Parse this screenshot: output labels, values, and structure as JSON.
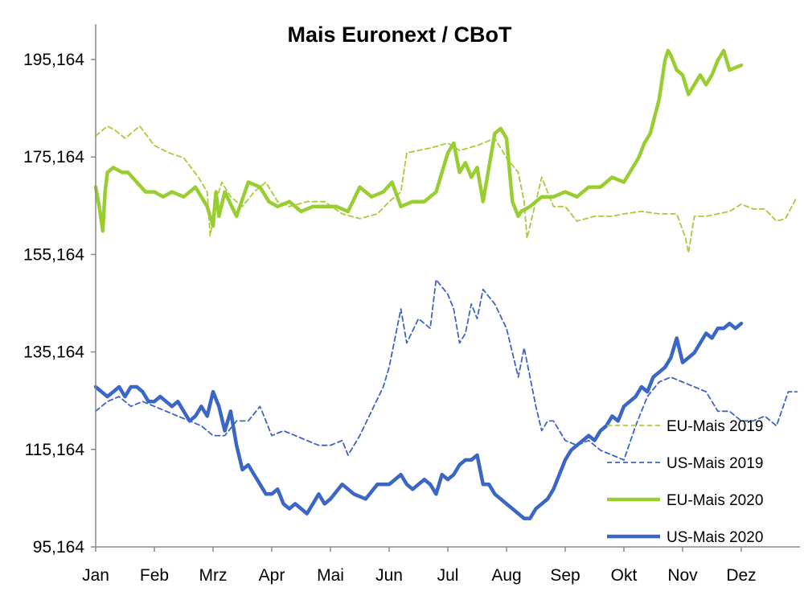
{
  "chart_data": {
    "type": "line",
    "title": "Mais Euronext / CBoT",
    "xlabel": "",
    "ylabel": "",
    "x_ticks": [
      "Jan",
      "Feb",
      "Mrz",
      "Apr",
      "Mai",
      "Jun",
      "Jul",
      "Aug",
      "Sep",
      "Okt",
      "Nov",
      "Dez"
    ],
    "y_ticks": [
      "95,164",
      "115,164",
      "135,164",
      "155,164",
      "175,164",
      "195,164"
    ],
    "ylim": [
      95.164,
      201.5
    ],
    "xlim": [
      0,
      11.95
    ],
    "grid": false,
    "legend_position": "bottom-right",
    "series": [
      {
        "name": "EU-Mais 2019",
        "color": "#a6cc3a",
        "style": "dashed",
        "x": [
          0,
          0.2,
          0.35,
          0.5,
          0.75,
          1.0,
          1.25,
          1.5,
          1.75,
          1.9,
          1.95,
          2.05,
          2.15,
          2.3,
          2.5,
          2.7,
          2.9,
          3.1,
          3.3,
          3.6,
          3.9,
          4.2,
          4.5,
          4.8,
          5.0,
          5.2,
          5.3,
          5.5,
          5.7,
          6.0,
          6.2,
          6.5,
          6.8,
          7.0,
          7.2,
          7.3,
          7.35,
          7.5,
          7.6,
          7.8,
          8.0,
          8.2,
          8.5,
          8.8,
          9.0,
          9.3,
          9.6,
          9.9,
          10.05,
          10.1,
          10.2,
          10.4,
          10.6,
          10.8,
          11.0,
          11.2,
          11.4,
          11.6,
          11.75,
          11.95
        ],
        "y": [
          179.5,
          181.5,
          180.5,
          179,
          181.5,
          177.5,
          176,
          175,
          171,
          168,
          159,
          166,
          170,
          167,
          165,
          168,
          170,
          166,
          165,
          166,
          166,
          163.5,
          162.5,
          163.5,
          166,
          168,
          176,
          176.5,
          177,
          178,
          176.5,
          177.5,
          179,
          175,
          172,
          166,
          158.5,
          166,
          171,
          165,
          165,
          162,
          163,
          163,
          163.5,
          164,
          163.5,
          163.5,
          158.5,
          155.5,
          163,
          163,
          163.5,
          164,
          165.5,
          164.5,
          164.5,
          162,
          162.5,
          167
        ]
      },
      {
        "name": "US-Mais 2019",
        "color": "#3c64c4",
        "style": "dashed",
        "x": [
          0,
          0.2,
          0.4,
          0.6,
          0.8,
          1.0,
          1.2,
          1.4,
          1.6,
          1.8,
          2.0,
          2.2,
          2.4,
          2.6,
          2.8,
          3.0,
          3.2,
          3.4,
          3.6,
          3.8,
          4.0,
          4.2,
          4.3,
          4.5,
          4.7,
          4.9,
          5.0,
          5.2,
          5.3,
          5.5,
          5.7,
          5.8,
          6.0,
          6.1,
          6.2,
          6.3,
          6.4,
          6.5,
          6.6,
          6.8,
          7.0,
          7.2,
          7.3,
          7.5,
          7.6,
          7.7,
          7.8,
          8.0,
          8.2,
          8.4,
          8.6,
          8.8,
          9.0,
          9.2,
          9.4,
          9.6,
          9.8,
          10.0,
          10.2,
          10.4,
          10.6,
          10.8,
          11.0,
          11.2,
          11.4,
          11.6,
          11.8,
          11.95
        ],
        "y": [
          123,
          125,
          126,
          124,
          125,
          124,
          123,
          122,
          121,
          120,
          118,
          118,
          121,
          121,
          124,
          118,
          119,
          118,
          117,
          116,
          116,
          117,
          114,
          118,
          123,
          128,
          132,
          144,
          137,
          142,
          140,
          150,
          147,
          144,
          137,
          139,
          145,
          142,
          148,
          145,
          140,
          130,
          136,
          124,
          119,
          121,
          121,
          117,
          116,
          117,
          115,
          114,
          113,
          120,
          126,
          129,
          130,
          129,
          128,
          127,
          123,
          123,
          121,
          121,
          122,
          120,
          127,
          127
        ]
      },
      {
        "name": "EU-Mais 2020",
        "color": "#9acd32",
        "style": "solid",
        "x": [
          0,
          0.06,
          0.12,
          0.16,
          0.2,
          0.3,
          0.45,
          0.55,
          0.7,
          0.85,
          1.0,
          1.15,
          1.3,
          1.5,
          1.7,
          1.9,
          2.0,
          2.05,
          2.1,
          2.2,
          2.4,
          2.6,
          2.8,
          2.95,
          3.1,
          3.3,
          3.5,
          3.7,
          3.9,
          4.1,
          4.3,
          4.5,
          4.7,
          4.9,
          5.05,
          5.2,
          5.4,
          5.6,
          5.8,
          6.0,
          6.1,
          6.2,
          6.3,
          6.4,
          6.5,
          6.6,
          6.8,
          6.9,
          7.0,
          7.1,
          7.2,
          7.25,
          7.4,
          7.6,
          7.8,
          8.0,
          8.2,
          8.4,
          8.6,
          8.8,
          9.0,
          9.1,
          9.25,
          9.35,
          9.45,
          9.6,
          9.7,
          9.75,
          9.8,
          9.9,
          10.0,
          10.1,
          10.2,
          10.3,
          10.4,
          10.5,
          10.6,
          10.7,
          10.8,
          11.0
        ],
        "y": [
          169,
          165,
          160,
          168,
          172,
          173,
          172,
          172,
          170,
          168,
          168,
          167,
          168,
          167,
          169,
          165,
          161,
          168,
          163,
          168,
          163,
          170,
          169,
          166,
          165,
          166,
          164,
          165,
          165,
          165,
          164,
          169,
          167,
          168,
          170,
          165,
          166,
          166,
          168,
          176,
          178,
          172,
          174,
          171,
          173,
          166,
          180,
          181,
          179,
          166,
          163,
          164,
          165,
          167,
          167,
          168,
          167,
          169,
          169,
          171,
          170,
          172,
          175,
          178,
          180,
          187,
          195,
          197,
          196,
          193,
          192,
          188,
          190,
          192,
          190,
          192,
          195,
          197,
          193,
          194
        ]
      },
      {
        "name": "US-Mais 2020",
        "color": "#3a66c6",
        "style": "solid",
        "x": [
          0,
          0.1,
          0.2,
          0.3,
          0.4,
          0.5,
          0.6,
          0.7,
          0.8,
          0.9,
          1.0,
          1.1,
          1.2,
          1.3,
          1.4,
          1.5,
          1.6,
          1.7,
          1.8,
          1.9,
          2.0,
          2.1,
          2.2,
          2.3,
          2.4,
          2.5,
          2.6,
          2.7,
          2.8,
          2.9,
          3.0,
          3.1,
          3.2,
          3.3,
          3.4,
          3.5,
          3.6,
          3.7,
          3.8,
          3.9,
          4.0,
          4.2,
          4.4,
          4.6,
          4.8,
          5.0,
          5.1,
          5.2,
          5.3,
          5.4,
          5.5,
          5.6,
          5.7,
          5.8,
          5.9,
          6.0,
          6.1,
          6.2,
          6.3,
          6.4,
          6.5,
          6.6,
          6.7,
          6.8,
          6.9,
          7.0,
          7.1,
          7.2,
          7.3,
          7.4,
          7.5,
          7.6,
          7.7,
          7.8,
          7.9,
          8.0,
          8.1,
          8.2,
          8.3,
          8.4,
          8.5,
          8.6,
          8.7,
          8.8,
          8.9,
          9.0,
          9.1,
          9.2,
          9.3,
          9.4,
          9.5,
          9.6,
          9.7,
          9.8,
          9.9,
          10.0,
          10.1,
          10.2,
          10.3,
          10.4,
          10.5,
          10.6,
          10.7,
          10.8,
          10.9,
          11.0
        ],
        "y": [
          128,
          127,
          126,
          127,
          128,
          126,
          128,
          128,
          127,
          125,
          125,
          126,
          125,
          124,
          125,
          123,
          121,
          122,
          124,
          122,
          127,
          124,
          119,
          123,
          116,
          111,
          112,
          110,
          108,
          106,
          106,
          107,
          104,
          103,
          104,
          103,
          102,
          104,
          106,
          104,
          105,
          108,
          106,
          105,
          108,
          108,
          109,
          110,
          108,
          107,
          108,
          109,
          108,
          106,
          110,
          109,
          110,
          112,
          113,
          113,
          114,
          108,
          108,
          106,
          105,
          104,
          103,
          102,
          101,
          101,
          103,
          104,
          105,
          107,
          110,
          113,
          115,
          116,
          117,
          118,
          117,
          119,
          120,
          122,
          121,
          124,
          125,
          126,
          128,
          127,
          130,
          131,
          132,
          134,
          138,
          133,
          134,
          135,
          137,
          139,
          138,
          140,
          140,
          141,
          140,
          141
        ]
      }
    ]
  }
}
